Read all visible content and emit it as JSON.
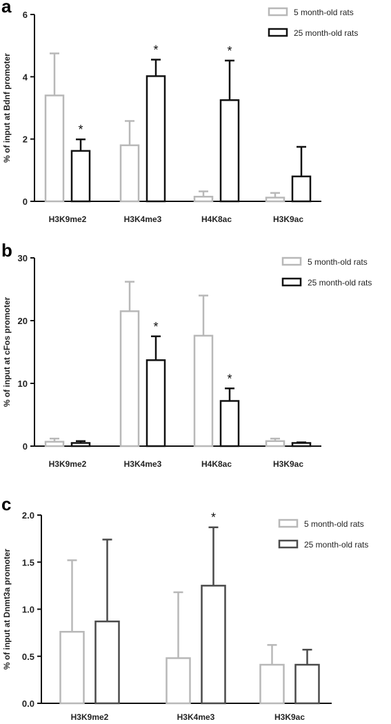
{
  "chart_data": [
    {
      "type": "bar",
      "panel_label": "a",
      "ylabel": "% of input at Bdnf promoter",
      "ylim": [
        0,
        6
      ],
      "yticks": [
        0,
        2,
        4,
        6
      ],
      "ytick_labels": [
        "0",
        "2",
        "4",
        "6"
      ],
      "categories": [
        "H3K9me2",
        "H3K4me3",
        "H4K8ac",
        "H3K9ac"
      ],
      "series": [
        {
          "name": "5 month-old rats",
          "color": "#b8b8b8",
          "values": [
            3.4,
            1.8,
            0.15,
            0.12
          ],
          "errors": [
            1.35,
            0.78,
            0.17,
            0.15
          ]
        },
        {
          "name": "25 month-old rats",
          "color": "#111111",
          "values": [
            1.62,
            4.02,
            3.25,
            0.8
          ],
          "errors": [
            0.37,
            0.53,
            1.27,
            0.95
          ]
        }
      ],
      "significance": [
        "*",
        "*",
        "*",
        ""
      ],
      "legend_position": "top-right"
    },
    {
      "type": "bar",
      "panel_label": "b",
      "ylabel": "% of input at cFos promoter",
      "ylim": [
        0,
        30
      ],
      "yticks": [
        0,
        10,
        20,
        30
      ],
      "ytick_labels": [
        "0",
        "10",
        "20",
        "30"
      ],
      "categories": [
        "H3K9me2",
        "H3K4me3",
        "H4K8ac",
        "H3K9ac"
      ],
      "series": [
        {
          "name": "5 month-old rats",
          "color": "#b8b8b8",
          "values": [
            0.7,
            21.5,
            17.6,
            0.8
          ],
          "errors": [
            0.5,
            4.7,
            6.4,
            0.4
          ]
        },
        {
          "name": "25 month-old rats",
          "color": "#111111",
          "values": [
            0.5,
            13.7,
            7.2,
            0.5
          ],
          "errors": [
            0.3,
            3.8,
            2.0,
            0.1
          ]
        }
      ],
      "significance": [
        "",
        "*",
        "*",
        ""
      ],
      "legend_position": "top-right"
    },
    {
      "type": "bar",
      "panel_label": "c",
      "ylabel": "% of input at Dnmt3a promoter",
      "ylim": [
        0,
        2.0
      ],
      "yticks": [
        0,
        0.5,
        1.0,
        1.5,
        2.0
      ],
      "ytick_labels": [
        "0.0",
        "0.5",
        "1.0",
        "1.5",
        "2.0"
      ],
      "categories": [
        "H3K9me2",
        "H3K4me3",
        "H3K9ac"
      ],
      "series": [
        {
          "name": "5 month-old rats",
          "color": "#b8b8b8",
          "values": [
            0.76,
            0.48,
            0.41
          ],
          "errors": [
            0.76,
            0.7,
            0.21
          ]
        },
        {
          "name": "25 month-old rats",
          "color": "#4a4a4a",
          "values": [
            0.87,
            1.25,
            0.41
          ],
          "errors": [
            0.87,
            0.62,
            0.16
          ]
        }
      ],
      "significance": [
        "",
        "*",
        ""
      ],
      "legend_position": "top-right"
    }
  ]
}
